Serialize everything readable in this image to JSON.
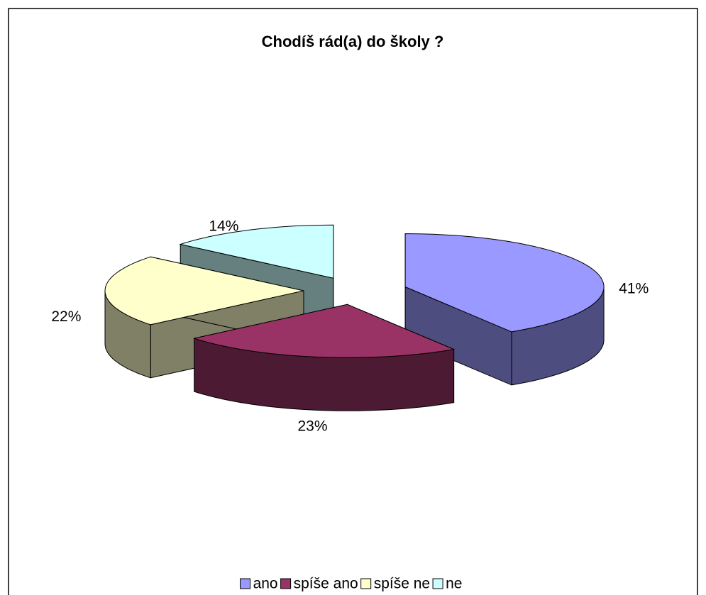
{
  "chart_data": {
    "type": "pie",
    "title": "Chodíš rád(a) do školy ?",
    "categories": [
      "ano",
      "spíše ano",
      "spíše ne",
      "ne"
    ],
    "values": [
      41,
      23,
      22,
      14
    ],
    "value_labels": [
      "41%",
      "23%",
      "22%",
      "14%"
    ],
    "colors": [
      "#9999ff",
      "#993366",
      "#ffffcc",
      "#ccffff"
    ],
    "legend": "bottom"
  }
}
